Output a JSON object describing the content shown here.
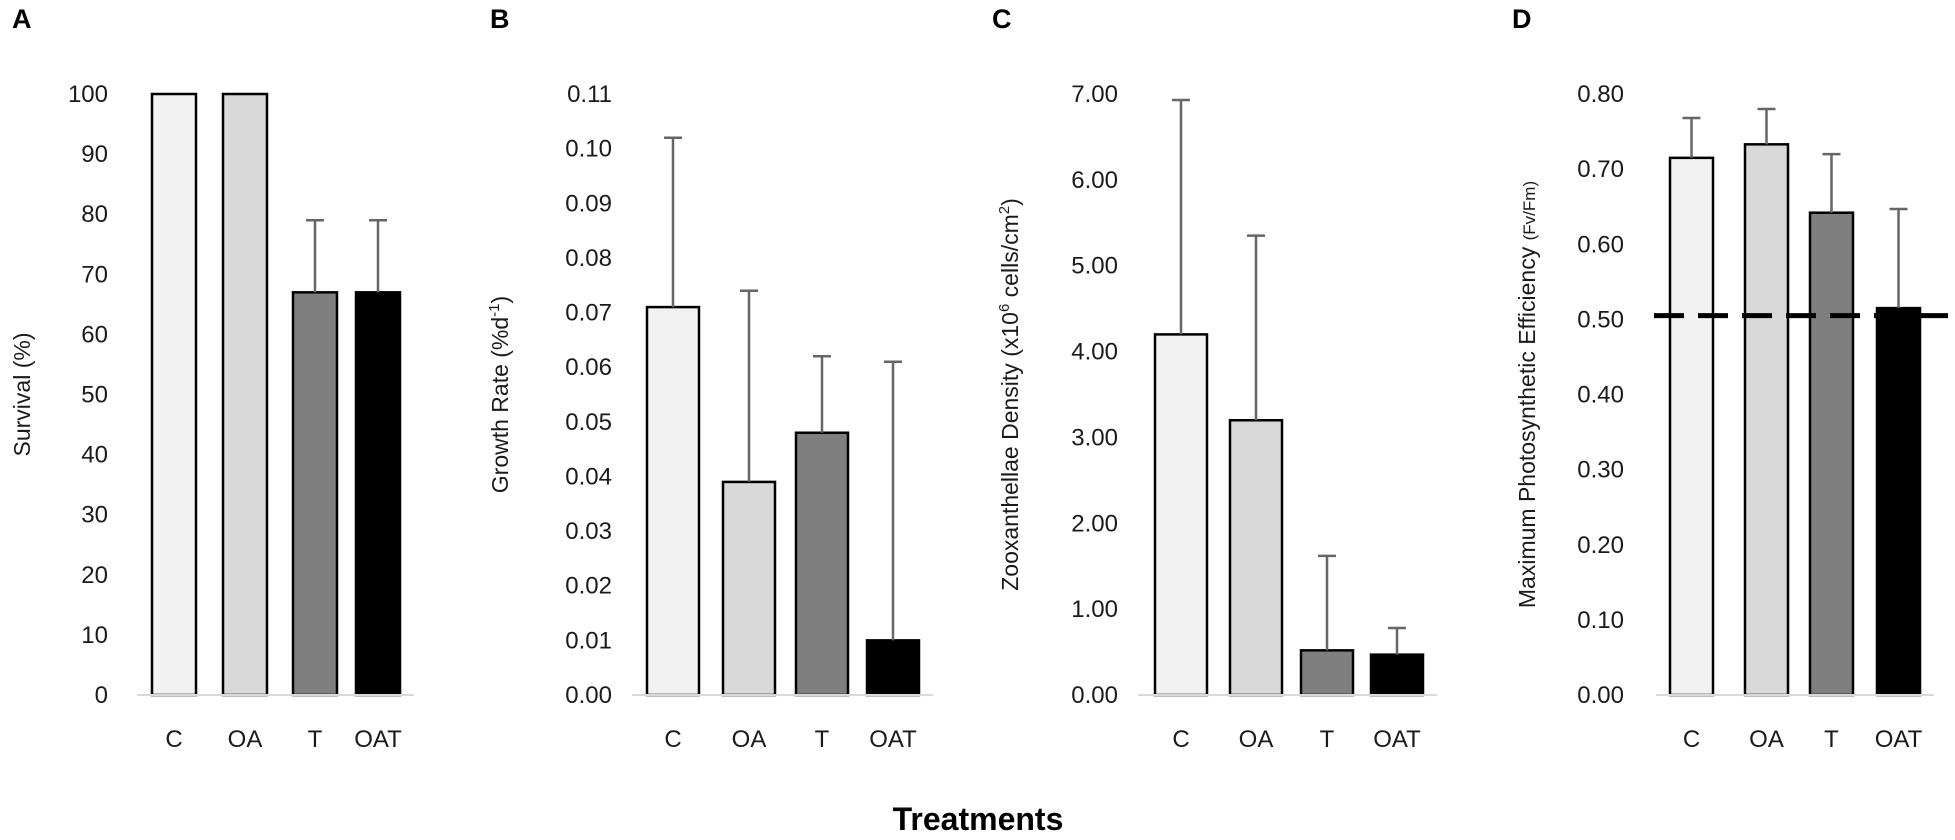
{
  "xlabel": "Treatments",
  "chart_data": [
    {
      "panel": "A",
      "type": "bar",
      "categories": [
        "C",
        "OA",
        "T",
        "OAT"
      ],
      "values": [
        100,
        100,
        67,
        67
      ],
      "errors": [
        0,
        0,
        12,
        12
      ],
      "ylabel": "Survival (%)",
      "ylim": [
        0,
        100
      ],
      "yticks": [
        "0",
        "10",
        "20",
        "30",
        "40",
        "50",
        "60",
        "70",
        "80",
        "90",
        "100"
      ],
      "colors": [
        "#f2f2f2",
        "#d9d9d9",
        "#7f7f7f",
        "#000000"
      ]
    },
    {
      "panel": "B",
      "type": "bar",
      "categories": [
        "C",
        "OA",
        "T",
        "OAT"
      ],
      "values": [
        0.071,
        0.039,
        0.048,
        0.01
      ],
      "errors": [
        0.031,
        0.035,
        0.014,
        0.051
      ],
      "ylabel_parts": [
        "Growth Rate  (%d",
        "-1",
        ")"
      ],
      "ylim": [
        0,
        0.11
      ],
      "yticks": [
        "0.00",
        "0.01",
        "0.02",
        "0.03",
        "0.04",
        "0.05",
        "0.06",
        "0.07",
        "0.08",
        "0.09",
        "0.10",
        "0.11"
      ],
      "colors": [
        "#f2f2f2",
        "#d9d9d9",
        "#7f7f7f",
        "#000000"
      ]
    },
    {
      "panel": "C",
      "type": "bar",
      "categories": [
        "C",
        "OA",
        "T",
        "OAT"
      ],
      "values": [
        4.2,
        3.2,
        0.52,
        0.47
      ],
      "errors": [
        2.73,
        2.15,
        1.1,
        0.31
      ],
      "ylabel_parts": [
        "Zooxanthellae Density (x10",
        "6",
        " cells/cm",
        "2",
        ")"
      ],
      "ylim": [
        0,
        7
      ],
      "yticks": [
        "0.00",
        "1.00",
        "2.00",
        "3.00",
        "4.00",
        "5.00",
        "6.00",
        "7.00"
      ],
      "colors": [
        "#f2f2f2",
        "#d9d9d9",
        "#7f7f7f",
        "#000000"
      ]
    },
    {
      "panel": "D",
      "type": "bar",
      "categories": [
        "C",
        "OA",
        "T",
        "OAT"
      ],
      "values": [
        0.715,
        0.733,
        0.642,
        0.515
      ],
      "errors": [
        0.053,
        0.047,
        0.078,
        0.132
      ],
      "ylabel_parts": [
        "Maximum Photosynthetic Efficiency ",
        "(Fv/Fm)"
      ],
      "ylim": [
        0,
        0.8
      ],
      "yticks": [
        "0.00",
        "0.10",
        "0.20",
        "0.30",
        "0.40",
        "0.50",
        "0.60",
        "0.70",
        "0.80"
      ],
      "reference_line": 0.505,
      "colors": [
        "#f2f2f2",
        "#d9d9d9",
        "#7f7f7f",
        "#000000"
      ]
    }
  ]
}
